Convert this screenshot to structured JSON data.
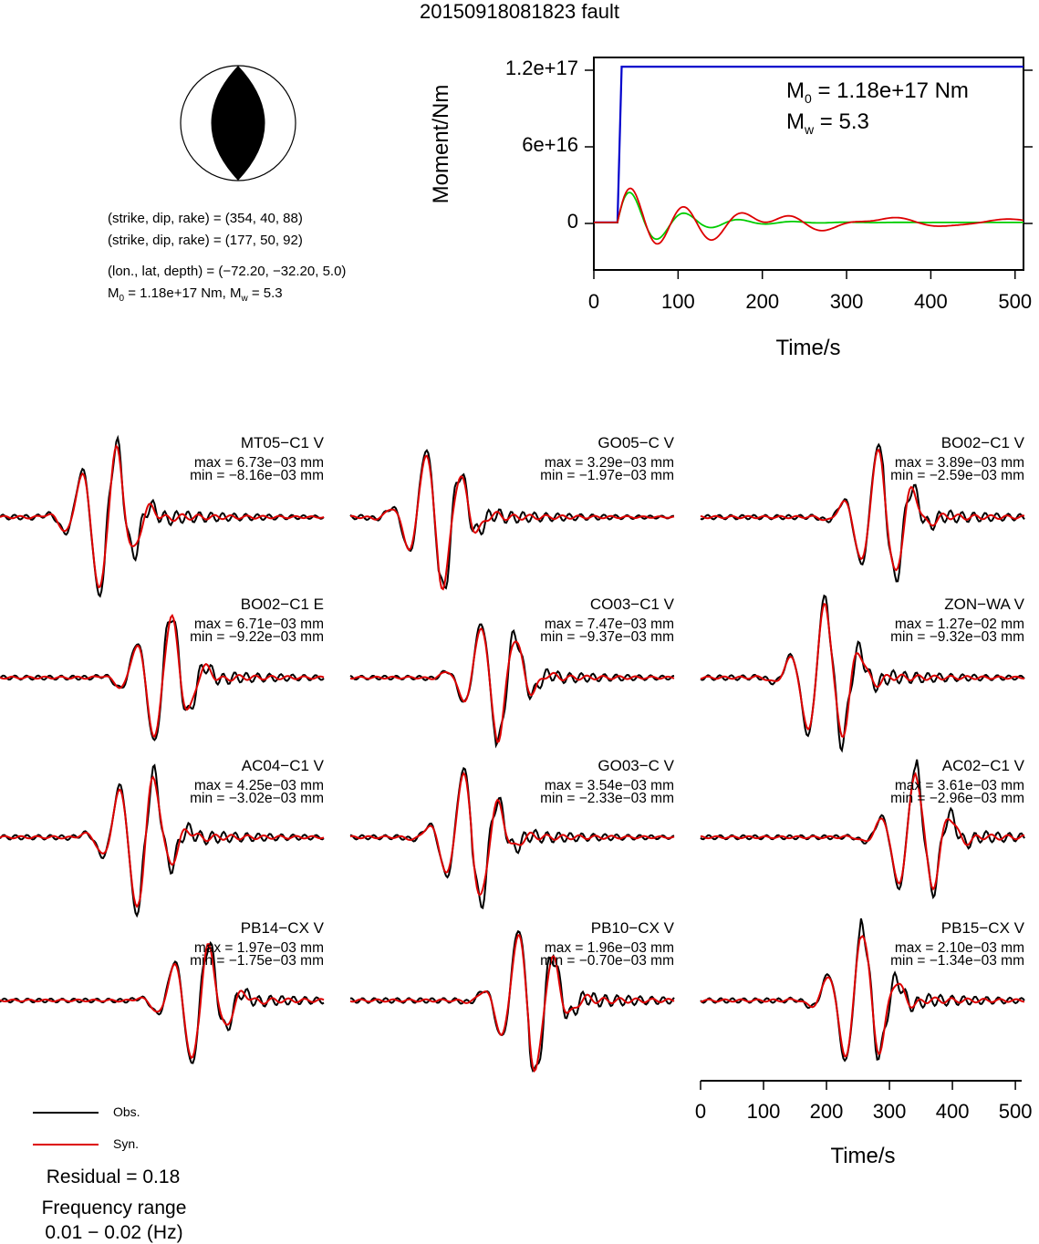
{
  "title": "20150918081823 fault",
  "mechanism": {
    "line1": "(strike, dip, rake) = (354, 40, 88)",
    "line2": "(strike, dip, rake) = (177, 50, 92)",
    "line3": "(lon., lat, depth) = (−72.20, −32.20, 5.0)",
    "m0_prefix": "M",
    "m0_sub": "0",
    "m0_rest": " = 1.18e+17 Nm, M",
    "mw_sub": "w",
    "mw_rest": " = 5.3"
  },
  "moment_panel": {
    "ylabel": "Moment/Nm",
    "xlabel": "Time/s",
    "yticks": [
      "1.2e+17",
      "6e+16",
      "0"
    ],
    "xticks": [
      "0",
      "100",
      "200",
      "300",
      "400",
      "500"
    ],
    "m0_label_a": "M",
    "m0_label_sub": "0",
    "m0_label_b": " = 1.18e+17 Nm",
    "mw_label_a": "M",
    "mw_label_sub": "w",
    "mw_label_b": " = 5.3",
    "colors": {
      "cumulative": "#0000cc",
      "rate_obs": "#00cc00",
      "rate_syn": "#dd0000"
    }
  },
  "chart_data": [
    {
      "type": "line",
      "title": "",
      "xlabel": "Time/s",
      "ylabel": "Moment/Nm",
      "xlim": [
        0,
        510
      ],
      "ylim": [
        -3.6e+16,
        1.25e+17
      ],
      "series": [
        {
          "x": [
            0,
            28,
            33,
            510
          ],
          "values": [
            0,
            0,
            1.18e+17,
            1.18e+17
          ]
        }
      ]
    }
  ],
  "waveforms": {
    "stations": [
      {
        "name": "MT05−C1 V",
        "max": "max = 6.73e−03 mm",
        "min": "min = −8.16e−03 mm"
      },
      {
        "name": "GO05−C V",
        "max": "max = 3.29e−03 mm",
        "min": "min = −1.97e−03 mm"
      },
      {
        "name": "BO02−C1 V",
        "max": "max = 3.89e−03 mm",
        "min": "min = −2.59e−03 mm"
      },
      {
        "name": "BO02−C1 E",
        "max": "max = 6.71e−03 mm",
        "min": "min = −9.22e−03 mm"
      },
      {
        "name": "CO03−C1 V",
        "max": "max = 7.47e−03 mm",
        "min": "min = −9.37e−03 mm"
      },
      {
        "name": "ZON−WA V",
        "max": "max = 1.27e−02 mm",
        "min": "min = −9.32e−03 mm"
      },
      {
        "name": "AC04−C1 V",
        "max": "max = 4.25e−03 mm",
        "min": "min = −3.02e−03 mm"
      },
      {
        "name": "GO03−C V",
        "max": "max = 3.54e−03 mm",
        "min": "min = −2.33e−03 mm"
      },
      {
        "name": "AC02−C1 V",
        "max": "max = 3.61e−03 mm",
        "min": "min = −2.96e−03 mm"
      },
      {
        "name": "PB14−CX V",
        "max": "max = 1.97e−03 mm",
        "min": "min = −1.75e−03 mm"
      },
      {
        "name": "PB10−CX V",
        "max": "max = 1.96e−03 mm",
        "min": "min = −0.70e−03 mm"
      },
      {
        "name": "PB15−CX V",
        "max": "max = 2.10e−03 mm",
        "min": "min = −1.34e−03 mm"
      }
    ],
    "xaxis": {
      "label": "Time/s",
      "ticks": [
        "0",
        "100",
        "200",
        "300",
        "400",
        "500"
      ]
    },
    "colors": {
      "obs": "#000000",
      "syn": "#dd0000"
    }
  },
  "legend": {
    "obs": "Obs.",
    "syn": "Syn.",
    "residual": "Residual = 0.18",
    "freq_title": "Frequency range",
    "freq_value": "0.01 − 0.02 (Hz)"
  }
}
